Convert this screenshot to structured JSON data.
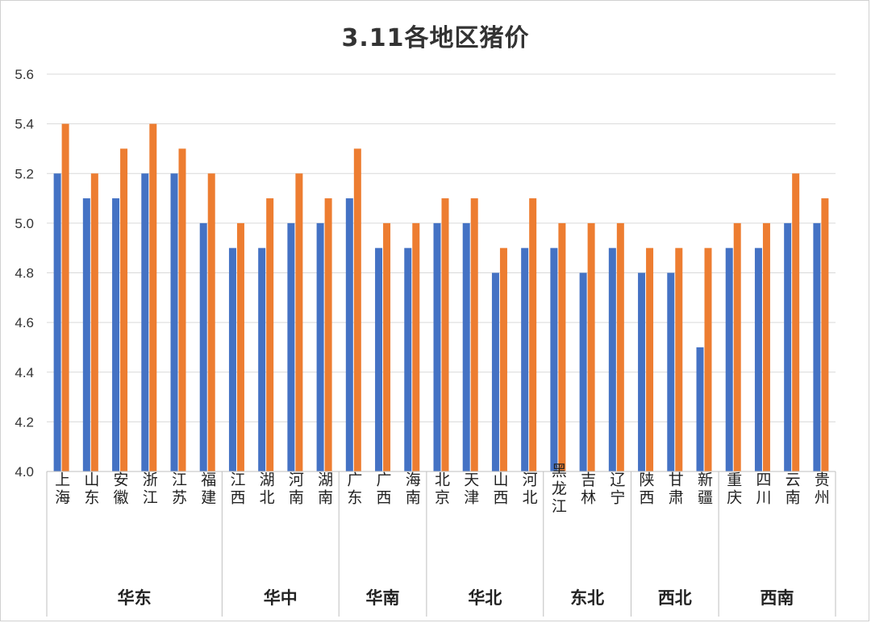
{
  "chart_data": {
    "type": "bar",
    "title": "3.11各地区猪价",
    "xlabel": "",
    "ylabel": "",
    "ylim": [
      4.0,
      5.6
    ],
    "yticks": [
      "4.0",
      "4.2",
      "4.4",
      "4.6",
      "4.8",
      "5.0",
      "5.2",
      "5.4",
      "5.6"
    ],
    "grid": true,
    "legend": "none",
    "categories": [
      "上海",
      "山东",
      "安徽",
      "浙江",
      "江苏",
      "福建",
      "江西",
      "湖北",
      "河南",
      "湖南",
      "广东",
      "广西",
      "海南",
      "北京",
      "天津",
      "山西",
      "河北",
      "黑龙江",
      "吉林",
      "辽宁",
      "陕西",
      "甘肃",
      "新疆",
      "重庆",
      "四川",
      "云南",
      "贵州"
    ],
    "groups": [
      {
        "label": "华东",
        "count": 6
      },
      {
        "label": "华中",
        "count": 4
      },
      {
        "label": "华南",
        "count": 3
      },
      {
        "label": "华北",
        "count": 4
      },
      {
        "label": "东北",
        "count": 3
      },
      {
        "label": "西北",
        "count": 3
      },
      {
        "label": "西南",
        "count": 4
      }
    ],
    "series": [
      {
        "color": "#4472C4",
        "values": [
          5.2,
          5.1,
          5.1,
          5.2,
          5.2,
          5.0,
          4.9,
          4.9,
          5.0,
          5.0,
          5.1,
          4.9,
          4.9,
          5.0,
          5.0,
          4.8,
          4.9,
          4.9,
          4.8,
          4.9,
          4.8,
          4.8,
          4.5,
          4.9,
          4.9,
          5.0,
          5.0
        ]
      },
      {
        "color": "#ED7D31",
        "values": [
          5.4,
          5.2,
          5.3,
          5.4,
          5.3,
          5.2,
          5.0,
          5.1,
          5.2,
          5.1,
          5.3,
          5.0,
          5.0,
          5.1,
          5.1,
          4.9,
          5.1,
          5.0,
          5.0,
          5.0,
          4.9,
          4.9,
          4.9,
          5.0,
          5.0,
          5.2,
          5.1
        ]
      }
    ]
  }
}
